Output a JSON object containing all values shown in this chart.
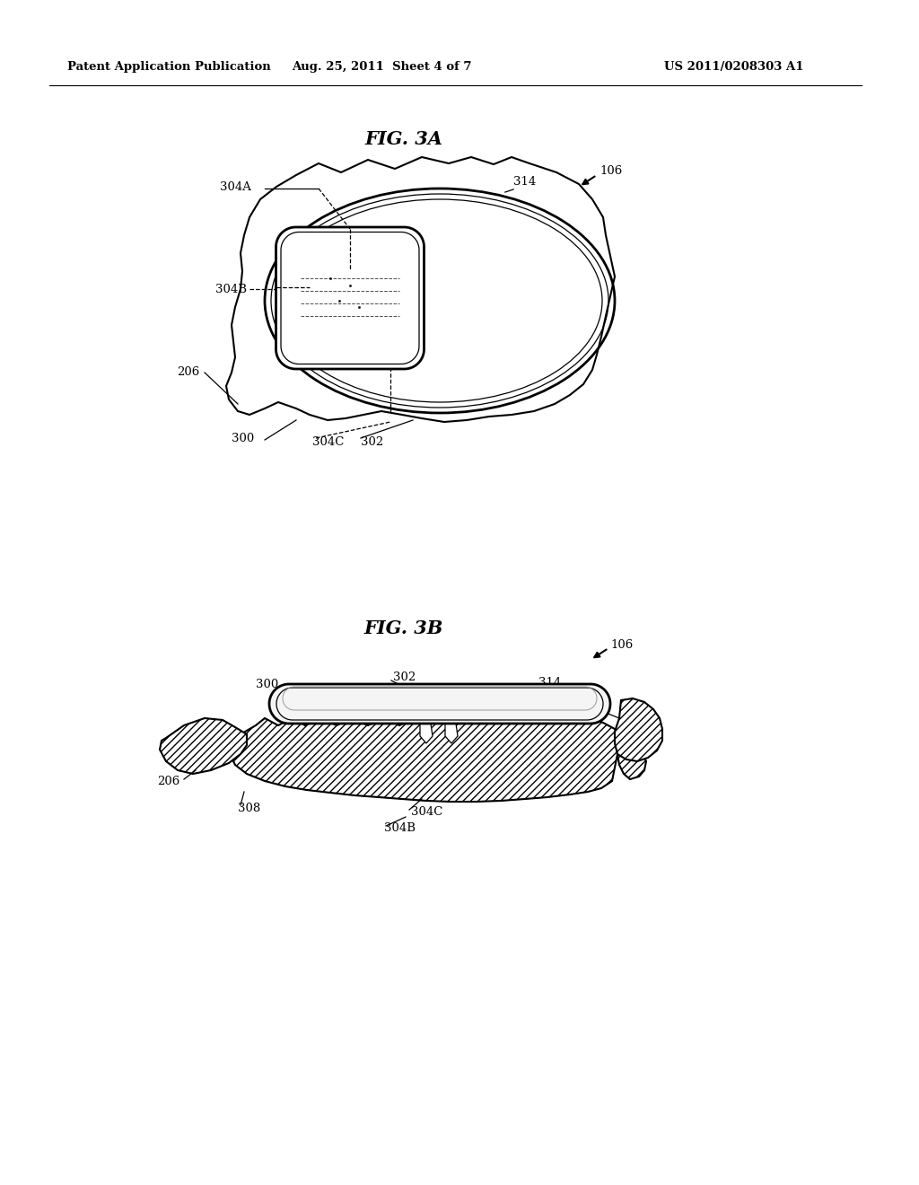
{
  "background_color": "#ffffff",
  "header_left": "Patent Application Publication",
  "header_mid": "Aug. 25, 2011  Sheet 4 of 7",
  "header_right": "US 2011/0208303 A1",
  "fig3a_title": "FIG. 3A",
  "fig3b_title": "FIG. 3B"
}
